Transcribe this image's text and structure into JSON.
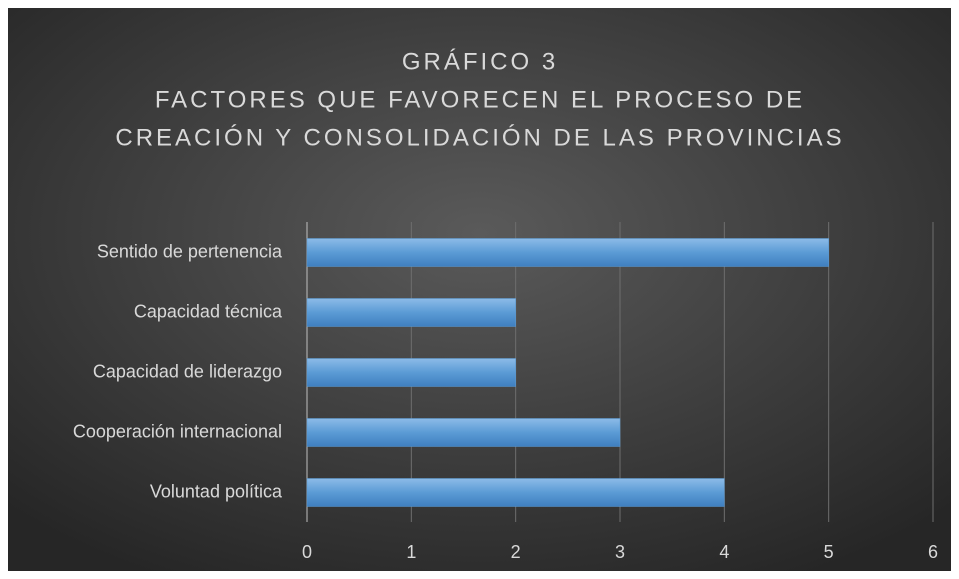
{
  "chart_data": {
    "type": "barh",
    "title": [
      "GRÁFICO 3",
      "FACTORES QUE FAVORECEN EL PROCESO DE",
      "CREACIÓN Y CONSOLIDACIÓN DE LAS PROVINCIAS"
    ],
    "categories": [
      "Sentido de pertenencia",
      "Capacidad técnica",
      "Capacidad de liderazgo",
      "Cooperación internacional",
      "Voluntad política"
    ],
    "values": [
      5,
      2,
      2,
      3,
      4
    ],
    "color": "#5b9bd5",
    "xlim": [
      0,
      6
    ],
    "xticks": [
      0,
      1,
      2,
      3,
      4,
      5,
      6
    ],
    "grid": true
  }
}
